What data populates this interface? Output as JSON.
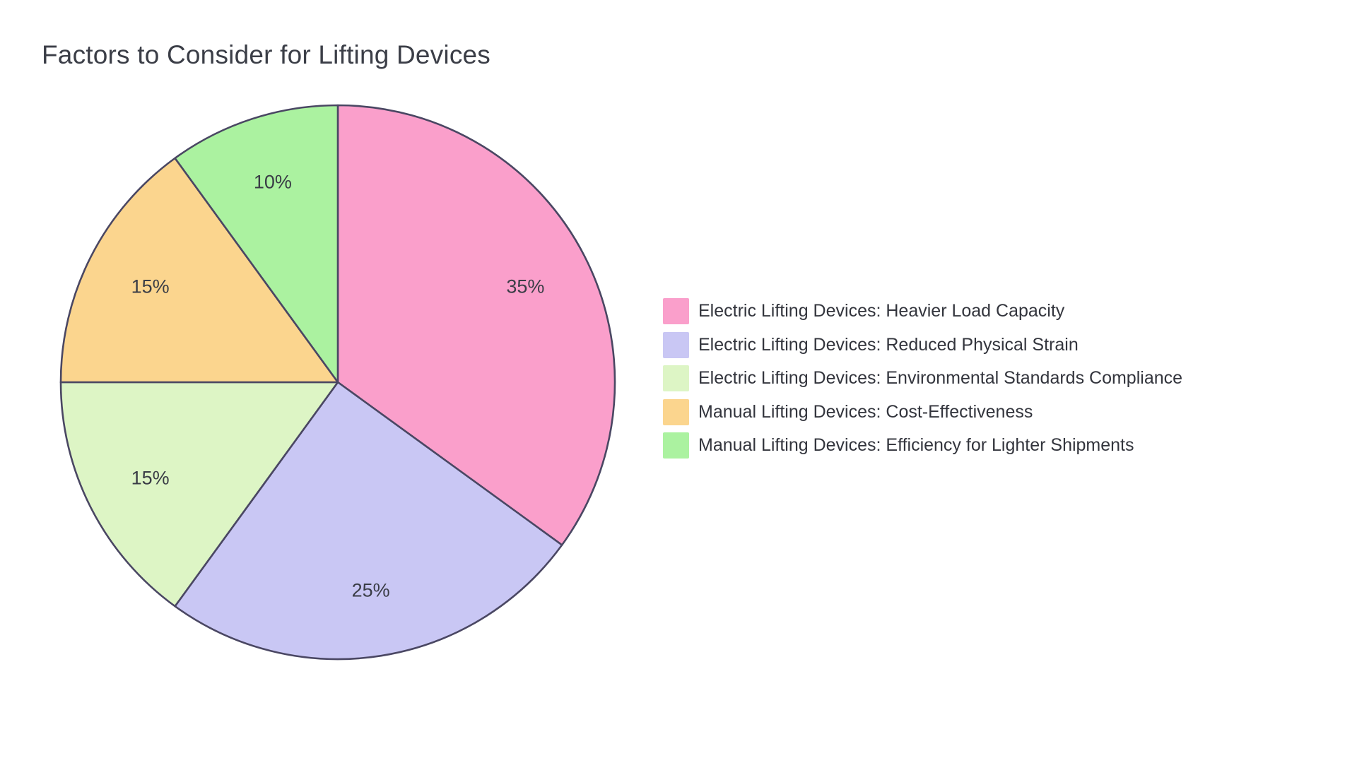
{
  "page": {
    "background": "#ffffff"
  },
  "header": {
    "title": "Factors to Consider for Lifting Devices"
  },
  "chart_data": {
    "type": "pie",
    "title": "Factors to Consider for Lifting Devices",
    "categories": [
      "Electric Lifting Devices: Heavier Load Capacity",
      "Electric Lifting Devices: Reduced Physical Strain",
      "Electric Lifting Devices: Environmental Standards Compliance",
      "Manual Lifting Devices: Cost-Effectiveness",
      "Manual Lifting Devices: Efficiency for Lighter Shipments"
    ],
    "values": [
      35,
      25,
      15,
      15,
      10
    ],
    "percent_labels": [
      "35%",
      "25%",
      "15%",
      "15%",
      "10%"
    ],
    "colors": [
      "#FA9FCB",
      "#C9C7F4",
      "#DDF5C5",
      "#FBD58E",
      "#ABF2A0"
    ],
    "stroke_color": "#4A4763",
    "start_angle_deg": 0,
    "direction": "clockwise",
    "legend_position": "right",
    "labels_inside": true
  },
  "legend": {
    "items": [
      {
        "label": "Electric Lifting Devices: Heavier Load Capacity",
        "color": "#FA9FCB"
      },
      {
        "label": "Electric Lifting Devices: Reduced Physical Strain",
        "color": "#C9C7F4"
      },
      {
        "label": "Electric Lifting Devices: Environmental Standards Compliance",
        "color": "#DDF5C5"
      },
      {
        "label": "Manual Lifting Devices: Cost-Effectiveness",
        "color": "#FBD58E"
      },
      {
        "label": "Manual Lifting Devices: Efficiency for Lighter Shipments",
        "color": "#ABF2A0"
      }
    ]
  }
}
